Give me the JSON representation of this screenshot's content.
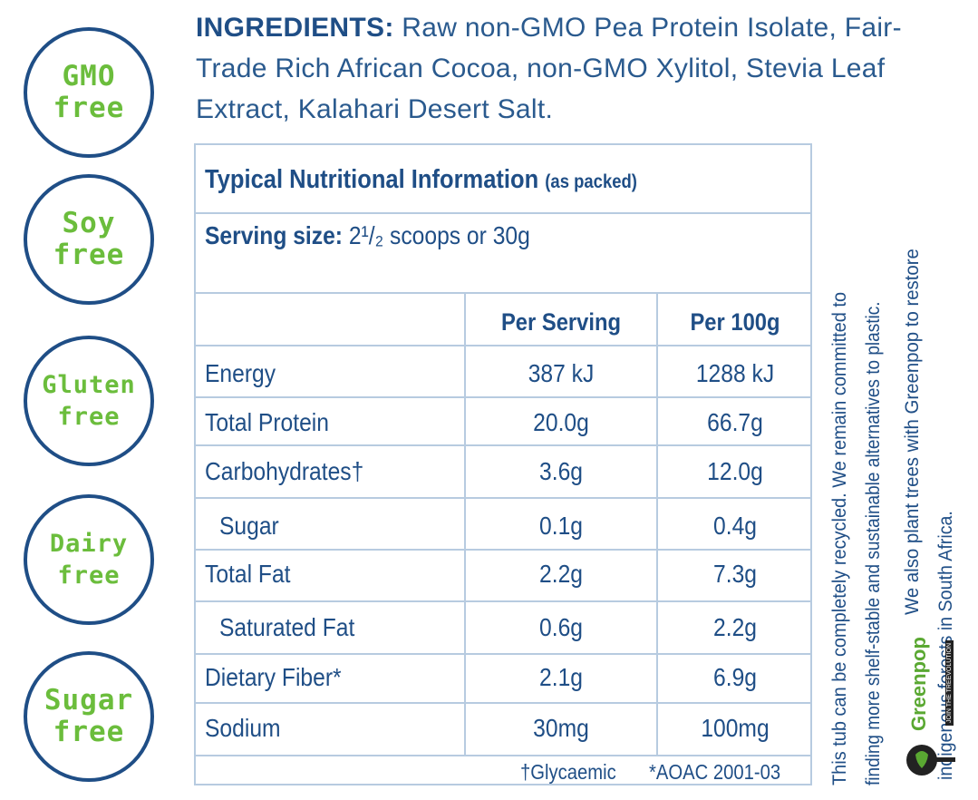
{
  "badges": [
    {
      "line1": "GMO",
      "line2": "free"
    },
    {
      "line1": "Soy",
      "line2": "free"
    },
    {
      "line1": "Gluten",
      "line2": "free"
    },
    {
      "line1": "Dairy",
      "line2": "free"
    },
    {
      "line1": "Sugar",
      "line2": "free"
    }
  ],
  "ingredients": {
    "heading": "INGREDIENTS:",
    "text": "Raw non-GMO Pea Protein Isolate, Fair-Trade Rich African Cocoa, non-GMO Xylitol, Stevia Leaf Extract, Kalahari Desert Salt."
  },
  "nutrition": {
    "title": "Typical Nutritional Information",
    "title_note": "(as packed)",
    "serving_label": "Serving size:",
    "serving_value": "2¹/₂ scoops or 30g",
    "col_per_serving": "Per Serving",
    "col_per_100g": "Per 100g",
    "rows": [
      {
        "label": "Energy",
        "per_serving": "387 kJ",
        "per_100g": "1288 kJ"
      },
      {
        "label": "Total Protein",
        "per_serving": "20.0g",
        "per_100g": "66.7g"
      },
      {
        "label": "Carbohydrates†",
        "per_serving": "3.6g",
        "per_100g": "12.0g"
      },
      {
        "label": "Sugar",
        "per_serving": "0.1g",
        "per_100g": "0.4g"
      },
      {
        "label": "Total Fat",
        "per_serving": "2.2g",
        "per_100g": "7.3g"
      },
      {
        "label": "Saturated Fat",
        "per_serving": "0.6g",
        "per_100g": "2.2g"
      },
      {
        "label": "Dietary Fiber*",
        "per_serving": "2.1g",
        "per_100g": "6.9g"
      },
      {
        "label": "Sodium",
        "per_serving": "30mg",
        "per_100g": "100mg"
      }
    ],
    "footnote1": "†Glycaemic",
    "footnote2": "*AOAC 2001-03"
  },
  "side_text": {
    "line1": "This tub can be completely recycled. We remain committed to",
    "line2": "finding more shelf-stable and sustainable alternatives to plastic.",
    "line3": "We also plant trees with Greenpop to restore",
    "line4": "indigenous forests in South Africa."
  },
  "greenpop": {
    "name": "Greenpop",
    "tagline": "JOIN THE TREEVOLUTION",
    "color": "#5aa832"
  },
  "colors": {
    "brand_blue": "#1f4e86",
    "badge_green": "#6bbd3c",
    "table_line": "#b7cbe0"
  }
}
